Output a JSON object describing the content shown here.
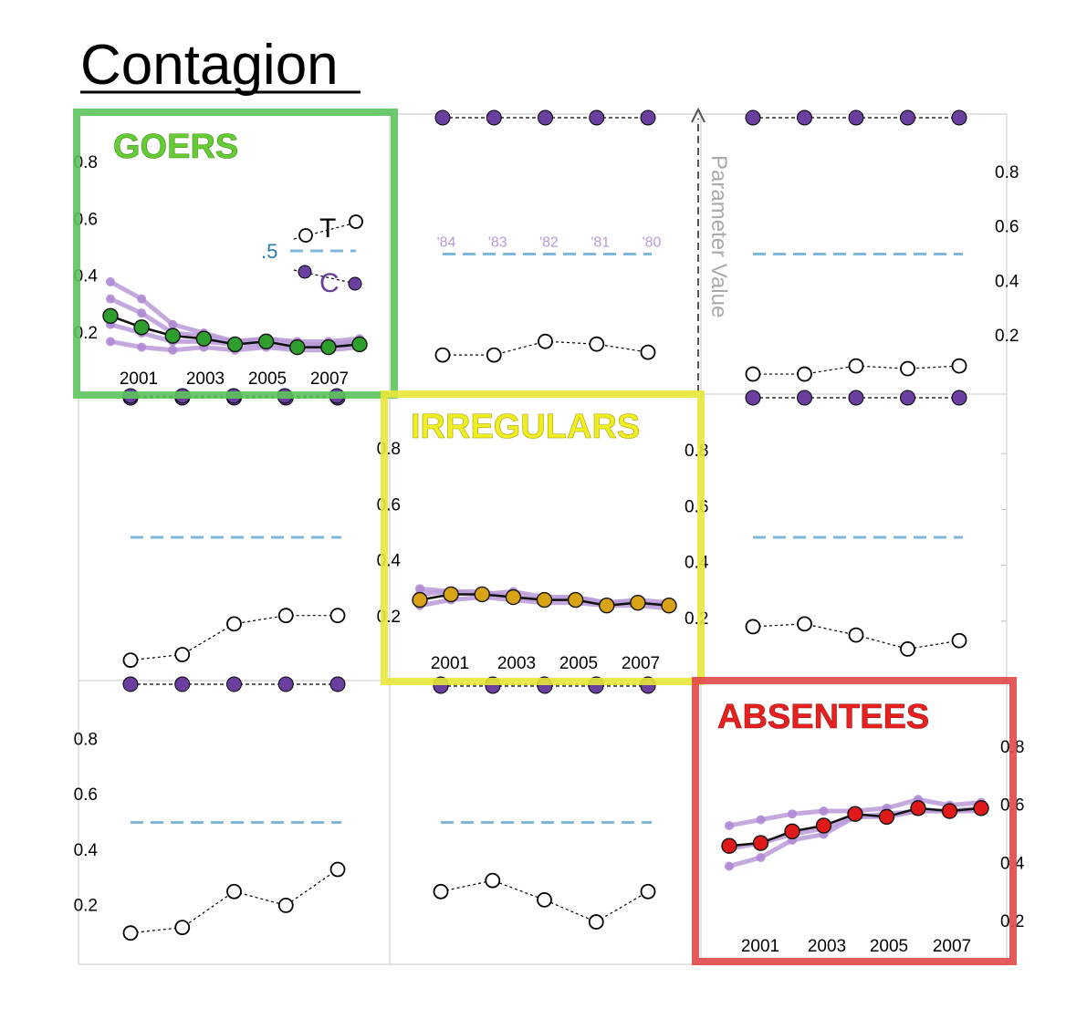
{
  "title": "Contagion",
  "parameter_axis_label": "Parameter Value",
  "legend": {
    "treatment": "T",
    "control": "C",
    "reference": ".5"
  },
  "colors": {
    "goers": "#5cc45c",
    "irregulars": "#e8e83a",
    "absentees": "#e04848",
    "purple": "#6b3fa0",
    "light_purple": "#b99ad8",
    "reference_line": "#7fb8dd"
  },
  "chart_data": [
    {
      "type": "line",
      "panel": "row1-col1",
      "group": "GOERS",
      "x": [
        2000,
        2001,
        2002,
        2003,
        2004,
        2005,
        2006,
        2007,
        2008
      ],
      "x_tick_labels": [
        "2001",
        "2003",
        "2005",
        "2007"
      ],
      "y_tick_labels": [
        "0.8",
        "0.6",
        "0.4",
        "0.2"
      ],
      "ylim": [
        0,
        1
      ],
      "series": [
        {
          "values": [
            0.26,
            0.22,
            0.19,
            0.18,
            0.16,
            0.17,
            0.15,
            0.15,
            0.16
          ]
        },
        {
          "values": [
            0.38,
            0.32,
            0.23,
            0.2,
            0.17,
            0.18,
            0.17,
            0.17,
            0.18
          ]
        },
        {
          "values": [
            0.32,
            0.27,
            0.2,
            0.19,
            0.17,
            0.18,
            0.16,
            0.16,
            0.17
          ]
        },
        {
          "values": [
            0.23,
            0.2,
            0.17,
            0.17,
            0.16,
            0.16,
            0.15,
            0.16,
            0.16
          ]
        },
        {
          "values": [
            0.17,
            0.15,
            0.14,
            0.15,
            0.14,
            0.15,
            0.14,
            0.14,
            0.15
          ]
        }
      ]
    },
    {
      "type": "line",
      "panel": "row1-col2",
      "x": [
        "'84",
        "'83",
        "'82",
        "'81",
        "'80"
      ],
      "x_labels": [
        "'84",
        "'83",
        "'82",
        "'81",
        "'80"
      ],
      "series": [
        {
          "values": [
            0.13,
            0.13,
            0.18,
            0.17,
            0.14
          ]
        },
        {
          "values": [
            1.0,
            1.0,
            1.0,
            1.0,
            1.0
          ]
        }
      ],
      "reference": 0.5
    },
    {
      "type": "line",
      "panel": "row1-col3",
      "x": [
        "'84",
        "'83",
        "'82",
        "'81",
        "'80"
      ],
      "y_tick_labels": [
        "0.8",
        "0.6",
        "0.4",
        "0.2"
      ],
      "series": [
        {
          "values": [
            0.06,
            0.06,
            0.09,
            0.08,
            0.09
          ]
        },
        {
          "values": [
            1.0,
            1.0,
            1.0,
            1.0,
            1.0
          ]
        }
      ],
      "reference": 0.5
    },
    {
      "type": "line",
      "panel": "row2-col1",
      "x": [
        "'84",
        "'83",
        "'82",
        "'81",
        "'80"
      ],
      "series": [
        {
          "values": [
            0.06,
            0.08,
            0.19,
            0.22,
            0.22
          ]
        },
        {
          "values": [
            1.0,
            1.0,
            1.0,
            1.0,
            1.0
          ]
        }
      ],
      "reference": 0.5
    },
    {
      "type": "line",
      "panel": "row2-col2",
      "group": "IRREGULARS",
      "x": [
        2000,
        2001,
        2002,
        2003,
        2004,
        2005,
        2006,
        2007,
        2008
      ],
      "x_tick_labels": [
        "2001",
        "2003",
        "2005",
        "2007"
      ],
      "y_tick_labels": [
        "0.8",
        "0.6",
        "0.4",
        "0.2"
      ],
      "ylim": [
        0,
        1
      ],
      "series": [
        {
          "values": [
            0.26,
            0.28,
            0.28,
            0.27,
            0.26,
            0.26,
            0.24,
            0.25,
            0.24
          ]
        },
        {
          "values": [
            0.3,
            0.29,
            0.28,
            0.29,
            0.27,
            0.27,
            0.25,
            0.26,
            0.25
          ]
        },
        {
          "values": [
            0.28,
            0.29,
            0.29,
            0.27,
            0.26,
            0.27,
            0.25,
            0.25,
            0.24
          ]
        },
        {
          "values": [
            0.24,
            0.26,
            0.27,
            0.26,
            0.25,
            0.25,
            0.24,
            0.24,
            0.23
          ]
        }
      ]
    },
    {
      "type": "line",
      "panel": "row2-col3",
      "x": [
        "'84",
        "'83",
        "'82",
        "'81",
        "'80"
      ],
      "y_tick_labels": [
        "0.8",
        "0.6",
        "0.4",
        "0.2"
      ],
      "series": [
        {
          "values": [
            0.18,
            0.19,
            0.15,
            0.1,
            0.13
          ]
        },
        {
          "values": [
            1.0,
            1.0,
            1.0,
            1.0,
            1.0
          ]
        }
      ],
      "reference": 0.5
    },
    {
      "type": "line",
      "panel": "row3-col1",
      "x": [
        "'84",
        "'83",
        "'82",
        "'81",
        "'80"
      ],
      "y_tick_labels": [
        "0.8",
        "0.6",
        "0.4",
        "0.2"
      ],
      "series": [
        {
          "values": [
            0.1,
            0.12,
            0.25,
            0.2,
            0.33
          ]
        },
        {
          "values": [
            1.0,
            1.0,
            1.0,
            1.0,
            1.0
          ]
        }
      ],
      "reference": 0.5
    },
    {
      "type": "line",
      "panel": "row3-col2",
      "x": [
        "'84",
        "'83",
        "'82",
        "'81",
        "'80"
      ],
      "series": [
        {
          "values": [
            0.25,
            0.29,
            0.22,
            0.14,
            0.25
          ]
        },
        {
          "values": [
            1.0,
            1.0,
            1.0,
            1.0,
            1.0
          ]
        }
      ],
      "reference": 0.5
    },
    {
      "type": "line",
      "panel": "row3-col3",
      "group": "ABSENTEES",
      "x": [
        2000,
        2001,
        2002,
        2003,
        2004,
        2005,
        2006,
        2007,
        2008
      ],
      "x_tick_labels": [
        "2001",
        "2003",
        "2005",
        "2007"
      ],
      "y_tick_labels": [
        "0.8",
        "0.6",
        "0.4",
        "0.2"
      ],
      "ylim": [
        0,
        1
      ],
      "series": [
        {
          "values": [
            0.46,
            0.47,
            0.51,
            0.53,
            0.57,
            0.56,
            0.59,
            0.58,
            0.59
          ]
        },
        {
          "values": [
            0.53,
            0.55,
            0.57,
            0.58,
            0.58,
            0.59,
            0.62,
            0.6,
            0.61
          ]
        },
        {
          "values": [
            0.45,
            0.47,
            0.5,
            0.52,
            0.56,
            0.56,
            0.58,
            0.58,
            0.59
          ]
        },
        {
          "values": [
            0.39,
            0.42,
            0.48,
            0.5,
            0.56,
            0.57,
            0.58,
            0.58,
            0.58
          ]
        }
      ]
    }
  ]
}
